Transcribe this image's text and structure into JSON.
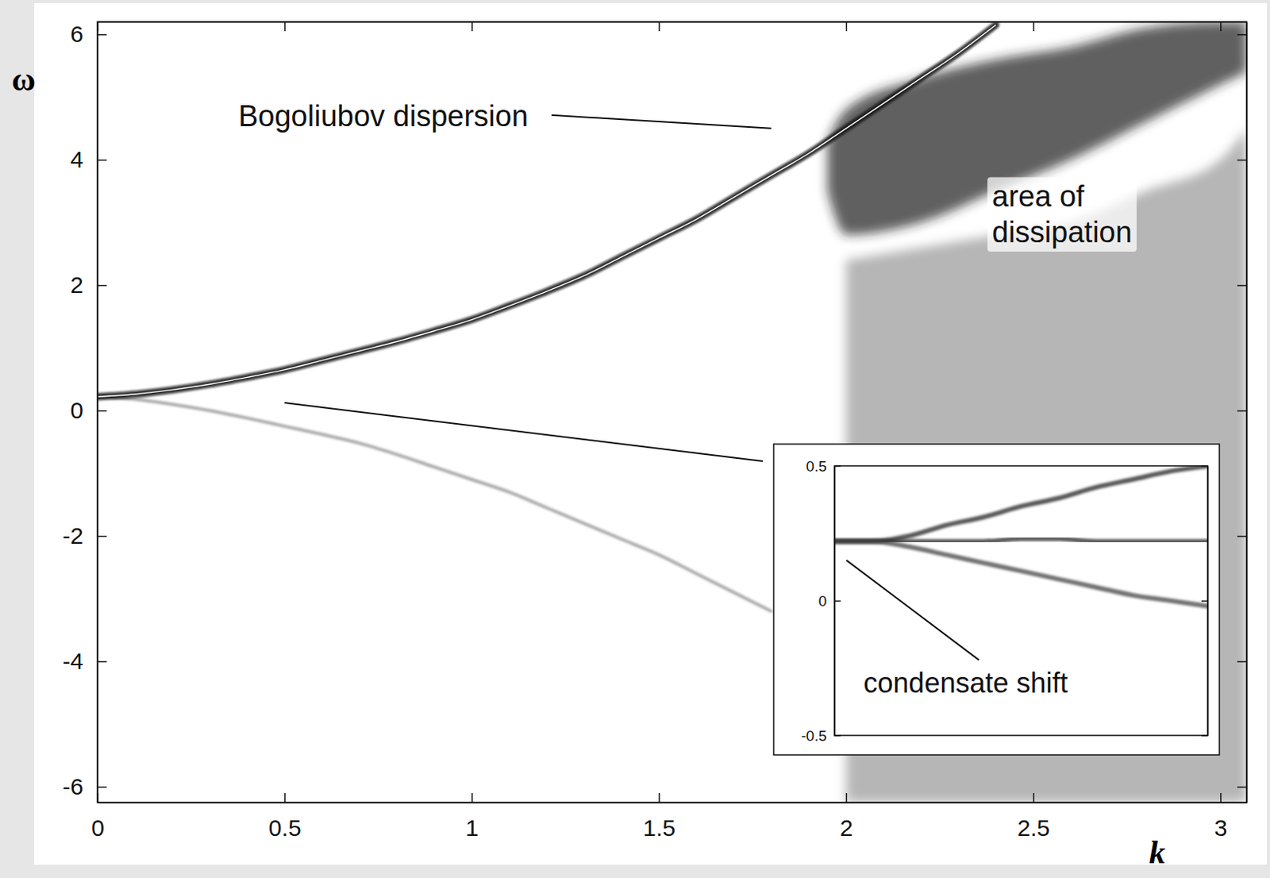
{
  "chart_data": [
    {
      "type": "line",
      "x_label": "k",
      "y_label": "ω",
      "xlim": [
        0,
        3.07
      ],
      "ylim": [
        -6.25,
        6.2
      ],
      "xticks": [
        0,
        0.5,
        1,
        1.5,
        2,
        2.5,
        3
      ],
      "yticks": [
        -6,
        -4,
        -2,
        0,
        2,
        4,
        6
      ],
      "series": [
        {
          "type": "area",
          "color": "#9a9a9a",
          "x": [
            2.0,
            2.2,
            2.4,
            2.6,
            2.8,
            3.0,
            3.07
          ],
          "values": [
            2.4,
            2.6,
            2.8,
            3.0,
            3.5,
            4.0,
            4.5
          ],
          "lower": [
            -6.25,
            -6.25,
            -6.25,
            -6.25,
            -6.25,
            -6.25,
            -6.25
          ]
        },
        {
          "type": "area",
          "color": "#262626",
          "x": [
            1.95,
            2.0,
            2.2,
            2.4,
            2.6,
            2.8,
            3.0,
            3.07
          ],
          "values": [
            4.3,
            4.8,
            5.3,
            5.6,
            5.8,
            6.1,
            6.2,
            6.2
          ],
          "lower": [
            3.5,
            2.8,
            3.0,
            3.5,
            4.0,
            4.6,
            5.2,
            5.4
          ]
        },
        {
          "type": "line",
          "color": "#8c8c8c",
          "x": [
            0,
            0.1,
            0.2,
            0.3,
            0.4,
            0.5,
            0.6,
            0.7,
            0.8,
            0.9,
            1.0,
            1.1,
            1.2,
            1.3,
            1.4,
            1.5,
            1.6,
            1.7,
            1.8
          ],
          "values": [
            0.22,
            0.18,
            0.1,
            0.0,
            -0.12,
            -0.25,
            -0.38,
            -0.52,
            -0.7,
            -0.9,
            -1.1,
            -1.3,
            -1.55,
            -1.8,
            -2.05,
            -2.3,
            -2.6,
            -2.9,
            -3.2
          ]
        },
        {
          "type": "line",
          "color": "#111111",
          "line_style": "highlighted",
          "x": [
            0,
            0.1,
            0.2,
            0.3,
            0.4,
            0.5,
            0.6,
            0.7,
            0.8,
            0.9,
            1.0,
            1.1,
            1.2,
            1.3,
            1.4,
            1.5,
            1.6,
            1.7,
            1.8,
            1.9,
            2.0,
            2.1,
            2.2,
            2.3,
            2.4
          ],
          "values": [
            0.22,
            0.26,
            0.33,
            0.42,
            0.53,
            0.65,
            0.8,
            0.95,
            1.1,
            1.27,
            1.45,
            1.67,
            1.9,
            2.15,
            2.45,
            2.75,
            3.05,
            3.4,
            3.75,
            4.1,
            4.5,
            4.9,
            5.3,
            5.7,
            6.15
          ]
        }
      ],
      "annotations": [
        {
          "text": "Bogoliubov dispersion",
          "x": 1.8,
          "y": 4.5
        },
        {
          "text": "area of\ndissipation",
          "x": 2.39,
          "y": 3.25
        }
      ]
    },
    {
      "type": "line",
      "xlim": [
        0,
        0.5
      ],
      "ylim": [
        -0.5,
        0.5
      ],
      "yticks": [
        -0.5,
        0,
        0.5
      ],
      "tick_labels": "y",
      "series": [
        {
          "type": "line",
          "color": "#222222",
          "x": [
            0,
            0.05,
            0.1,
            0.15,
            0.2,
            0.25,
            0.3,
            0.35,
            0.4,
            0.45,
            0.5
          ],
          "values": [
            0.22,
            0.22,
            0.24,
            0.28,
            0.31,
            0.35,
            0.38,
            0.42,
            0.45,
            0.48,
            0.5
          ]
        },
        {
          "type": "line",
          "color": "#222222",
          "x": [
            0,
            0.05,
            0.1,
            0.15,
            0.2,
            0.25,
            0.3,
            0.35,
            0.4,
            0.45,
            0.5
          ],
          "values": [
            0.22,
            0.22,
            0.22,
            0.22,
            0.22,
            0.23,
            0.23,
            0.22,
            0.22,
            0.22,
            0.22
          ]
        },
        {
          "type": "line",
          "color": "#444444",
          "x": [
            0,
            0.05,
            0.1,
            0.15,
            0.2,
            0.25,
            0.3,
            0.35,
            0.4,
            0.45,
            0.5
          ],
          "values": [
            0.22,
            0.22,
            0.2,
            0.17,
            0.14,
            0.11,
            0.08,
            0.05,
            0.02,
            0.0,
            -0.02
          ]
        }
      ],
      "annotations": [
        {
          "text": "condensate shift",
          "x": 0.016,
          "y": 0.15
        }
      ]
    }
  ]
}
